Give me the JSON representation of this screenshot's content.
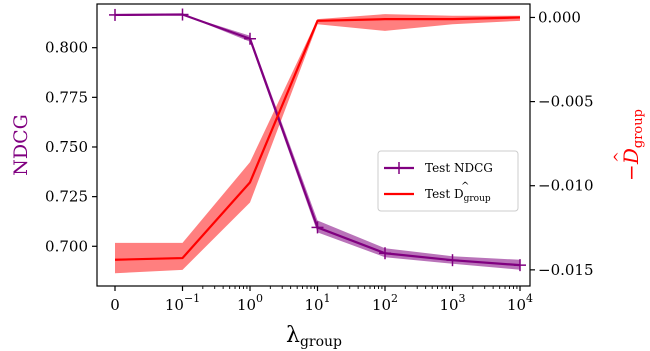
{
  "chart_data": {
    "type": "line",
    "x_categories": [
      "0",
      "10",
      "10",
      "10",
      "10",
      "10",
      "10"
    ],
    "x_exponents": [
      "",
      "−1",
      "0",
      "1",
      "2",
      "3",
      "4"
    ],
    "xlabel": {
      "main": "λ",
      "sub": "group"
    },
    "ylabel_left": "NDCG",
    "ylabel_right": {
      "prefix": "−",
      "main": "D",
      "hat": "^",
      "sub": "group"
    },
    "ylim_left": [
      0.68,
      0.822
    ],
    "ylim_right": [
      -0.01596,
      0.0008
    ],
    "left_ticks": [
      {
        "v": 0.7,
        "t": "0.700"
      },
      {
        "v": 0.725,
        "t": "0.725"
      },
      {
        "v": 0.75,
        "t": "0.750"
      },
      {
        "v": 0.775,
        "t": "0.775"
      },
      {
        "v": 0.8,
        "t": "0.800"
      }
    ],
    "right_ticks": [
      {
        "v": 0.0,
        "t": "0.000"
      },
      {
        "v": -0.005,
        "t": "−0.005"
      },
      {
        "v": -0.01,
        "t": "−0.010"
      },
      {
        "v": -0.015,
        "t": "−0.015"
      }
    ],
    "series": [
      {
        "name": "Test NDCG",
        "axis": "left",
        "color": "#800080",
        "marker": "+",
        "values": [
          0.8165,
          0.8167,
          0.8045,
          0.7095,
          0.6965,
          0.693,
          0.6905
        ],
        "lower": [
          0.8165,
          0.8167,
          0.803,
          0.707,
          0.6945,
          0.6912,
          0.6882
        ],
        "upper": [
          0.8165,
          0.8167,
          0.806,
          0.713,
          0.699,
          0.695,
          0.6932
        ]
      },
      {
        "name": "Test D̂group",
        "axis": "right",
        "color": "#ff0000",
        "marker": "none",
        "values": [
          -0.0144,
          -0.0143,
          -0.0098,
          -0.0002,
          -0.0001,
          -0.0001,
          0.0
        ],
        "lower": [
          -0.0152,
          -0.015,
          -0.011,
          -0.0004,
          -0.0008,
          -0.0004,
          -0.0002
        ],
        "upper": [
          -0.0134,
          -0.0134,
          -0.0086,
          -0.0001,
          0.0002,
          0.0001,
          0.0001
        ]
      }
    ],
    "legend": {
      "placement": "center-right",
      "entries": [
        {
          "label": "Test NDCG",
          "text_main": "Test NDCG",
          "text_sub": ""
        },
        {
          "label": "Test D̂group",
          "text_main": "Test D",
          "hat": "^",
          "text_sub": "group"
        }
      ]
    },
    "grid": false
  }
}
